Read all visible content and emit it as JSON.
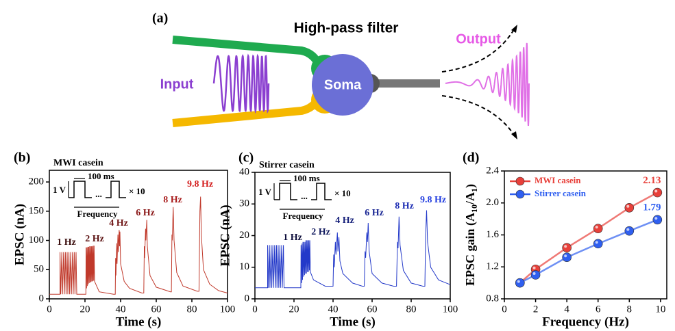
{
  "figure_a": {
    "panel": "(a)",
    "title": "High-pass filter",
    "input": "Input",
    "soma": "Soma",
    "output": "Output"
  },
  "chart_data": [
    {
      "type": "line",
      "panel": "(b)",
      "title": "MWI casein",
      "x_label": "Time (s)",
      "y_label": "EPSC (nA)",
      "color": "#c0392b",
      "x": [
        0,
        6,
        6,
        6.4,
        7,
        7.4,
        8,
        8.4,
        9,
        9.4,
        10,
        10.4,
        11,
        11.4,
        12,
        12.4,
        13,
        13.4,
        14,
        14.4,
        15,
        15.4,
        20.5,
        20.6,
        20.9,
        21.1,
        21.4,
        21.6,
        21.9,
        22.1,
        22.4,
        22.6,
        22.9,
        23.1,
        23.4,
        23.6,
        23.9,
        24.1,
        24.4,
        24.6,
        24.9,
        25.1,
        25.4,
        28,
        36,
        37,
        37.2,
        37.4,
        37.8,
        38,
        38.5,
        38.7,
        39.2,
        39.4,
        39.6,
        40,
        42,
        45,
        52,
        53,
        53.3,
        53.5,
        54,
        54.2,
        54.7,
        55,
        56.5,
        60,
        68,
        68.5,
        68.8,
        69,
        69.5,
        70,
        71.5,
        75,
        83,
        84,
        84.5,
        84.9,
        85.3,
        86.5,
        90,
        95,
        100
      ],
      "values": [
        8,
        8,
        80,
        8,
        80,
        8,
        80,
        8,
        80,
        8,
        80,
        8,
        80,
        8,
        80,
        8,
        80,
        8,
        80,
        8,
        80,
        8,
        8,
        88,
        18,
        88,
        22,
        89,
        25,
        89,
        27,
        90,
        28,
        90,
        29,
        90,
        30,
        90,
        30,
        91,
        31,
        91,
        30,
        12,
        8,
        8,
        70,
        40,
        95,
        60,
        110,
        80,
        118,
        90,
        115,
        60,
        30,
        18,
        10,
        10,
        90,
        70,
        120,
        100,
        135,
        90,
        40,
        20,
        12,
        12,
        110,
        100,
        157,
        100,
        45,
        22,
        13,
        13,
        150,
        175,
        110,
        50,
        25,
        14,
        10
      ],
      "xlim": [
        0,
        100
      ],
      "xticks": [
        0,
        20,
        40,
        60,
        80,
        100
      ],
      "ylim": [
        0,
        220
      ],
      "yticks": [
        0,
        50,
        100,
        150,
        200
      ],
      "burst_labels": [
        "1 Hz",
        "2 Hz",
        "4 Hz",
        "6 Hz",
        "8 Hz",
        "9.8 Hz"
      ],
      "label_colors": [
        "#3a0d0d",
        "#5a1010",
        "#6e1414",
        "#8a1717",
        "#a81c1c",
        "#d42020"
      ],
      "inset": {
        "width": "100 ms",
        "amp": "1 V",
        "dots": "...",
        "repeat": "× 10",
        "freq": "Frequency"
      }
    },
    {
      "type": "line",
      "panel": "(c)",
      "title": "Stirrer casein",
      "x_label": "Time (s)",
      "y_label": "EPSC (nA)",
      "color": "#2339c9",
      "x": [
        0,
        6.5,
        6.5,
        6.8,
        7.4,
        7.7,
        8.3,
        8.6,
        9.2,
        9.5,
        10.1,
        10.4,
        11,
        11.3,
        11.9,
        12.2,
        12.8,
        13.1,
        13.7,
        14,
        14.6,
        14.9,
        23.5,
        23.6,
        23.9,
        24.1,
        24.4,
        24.6,
        24.9,
        25.1,
        25.4,
        25.6,
        25.9,
        26.1,
        26.4,
        26.6,
        26.9,
        27.1,
        27.4,
        27.6,
        27.9,
        28.1,
        28.4,
        30,
        36,
        40,
        40.3,
        40.6,
        41.2,
        41.5,
        42.2,
        42.5,
        43,
        43.5,
        45,
        50,
        55,
        56,
        56.4,
        56.7,
        57.3,
        57.6,
        58,
        58.5,
        60,
        65,
        71,
        72.5,
        73,
        73.3,
        73.8,
        74.3,
        76,
        80,
        86,
        87,
        87.4,
        87.9,
        88.4,
        90,
        94,
        100
      ],
      "values": [
        3.5,
        3.5,
        17,
        3.5,
        17,
        3.5,
        17,
        3.5,
        17,
        3.5,
        17,
        3.5,
        17,
        3.5,
        17,
        3.5,
        17,
        3.5,
        17,
        3.5,
        17,
        3.5,
        3.5,
        17,
        5,
        17.5,
        6,
        18,
        7,
        18,
        7.5,
        18,
        8,
        18.5,
        8,
        18.5,
        8.5,
        18.5,
        8.5,
        18.5,
        9,
        18.5,
        8.5,
        6,
        4,
        4,
        14,
        10,
        18,
        14,
        21,
        15,
        19.5,
        12,
        8,
        5,
        4,
        4,
        15,
        13,
        21,
        18,
        24,
        15,
        8,
        5,
        4,
        4,
        18,
        16,
        26,
        17,
        9,
        5,
        4,
        4,
        20,
        28,
        18,
        10,
        6,
        4.5
      ],
      "xlim": [
        0,
        100
      ],
      "xticks": [
        0,
        20,
        40,
        60,
        80,
        100
      ],
      "ylim": [
        0,
        40
      ],
      "yticks": [
        0,
        10,
        20,
        30,
        40
      ],
      "burst_labels": [
        "1 Hz",
        "2 Hz",
        "4 Hz",
        "6 Hz",
        "8 Hz",
        "9.8 Hz"
      ],
      "label_colors": [
        "#0d0d3a",
        "#121a5e",
        "#16207a",
        "#1a2794",
        "#1f2fb4",
        "#2540e0"
      ],
      "inset": {
        "width": "100 ms",
        "amp": "1 V",
        "dots": "...",
        "repeat": "× 10",
        "freq": "Frequency"
      }
    },
    {
      "type": "line",
      "panel": "(d)",
      "x_label": "Frequency (Hz)",
      "y_label_parts": [
        "EPSC gain (A",
        "10",
        "/A",
        "1",
        ")"
      ],
      "x": [
        1,
        2,
        4,
        6,
        8,
        9.8
      ],
      "series": [
        {
          "name": "MWI casein",
          "color": "#e8403a",
          "values": [
            1.0,
            1.17,
            1.44,
            1.68,
            1.94,
            2.13
          ]
        },
        {
          "name": "Stirrer casein",
          "color": "#2f5ff0",
          "values": [
            1.0,
            1.1,
            1.32,
            1.49,
            1.65,
            1.79
          ]
        }
      ],
      "xlim": [
        0,
        10.4
      ],
      "xticks": [
        0,
        2,
        4,
        6,
        8,
        10
      ],
      "ylim": [
        0.8,
        2.4
      ],
      "yticks": [
        0.8,
        1.2,
        1.6,
        {
          "value": 2,
          "label": "2.0"
        },
        2.4
      ]
    }
  ]
}
